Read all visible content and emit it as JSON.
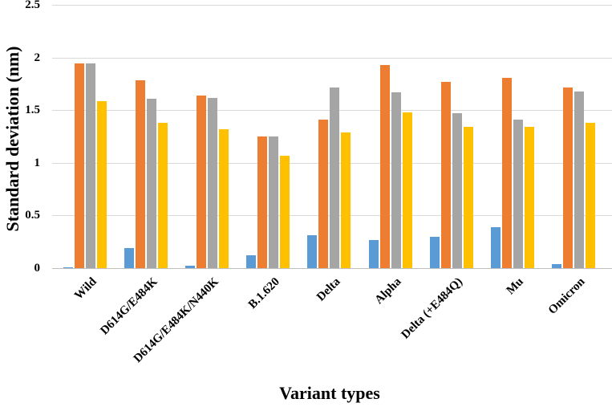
{
  "figure": {
    "background": "#ffffff",
    "text_color": "#000000",
    "gridline_color": "#d9d9d9",
    "axis_line_color": "#bfbfbf"
  },
  "chart_data": {
    "type": "bar",
    "title": "",
    "xlabel": "Variant types",
    "ylabel": "Standard deviation (nm)",
    "categories": [
      "Wild",
      "D614G/E484K",
      "D614G/E484K/N440K",
      "B.1.620",
      "Delta",
      "Alpha",
      "Delta (+E484Q)",
      "Mu",
      "Omicron"
    ],
    "series": [
      {
        "name": "blue",
        "color": "#5B9BD5",
        "values": [
          0.01,
          0.19,
          0.02,
          0.12,
          0.31,
          0.27,
          0.3,
          0.39,
          0.04
        ]
      },
      {
        "name": "orange",
        "color": "#ED7D31",
        "values": [
          1.95,
          1.79,
          1.64,
          1.25,
          1.41,
          1.93,
          1.77,
          1.81,
          1.72
        ]
      },
      {
        "name": "gray",
        "color": "#A5A5A5",
        "values": [
          1.95,
          1.61,
          1.62,
          1.25,
          1.72,
          1.67,
          1.47,
          1.41,
          1.68
        ]
      },
      {
        "name": "yellow",
        "color": "#FFC000",
        "values": [
          1.59,
          1.38,
          1.32,
          1.07,
          1.29,
          1.48,
          1.34,
          1.34,
          1.38
        ]
      }
    ],
    "ylim": [
      0,
      2.5
    ],
    "yticks": [
      0,
      0.5,
      1,
      1.5,
      2,
      2.5
    ],
    "ytick_labels": [
      "0",
      "0.5",
      "1",
      "1.5",
      "2",
      "2.5"
    ],
    "grid": true,
    "legend": "none"
  }
}
